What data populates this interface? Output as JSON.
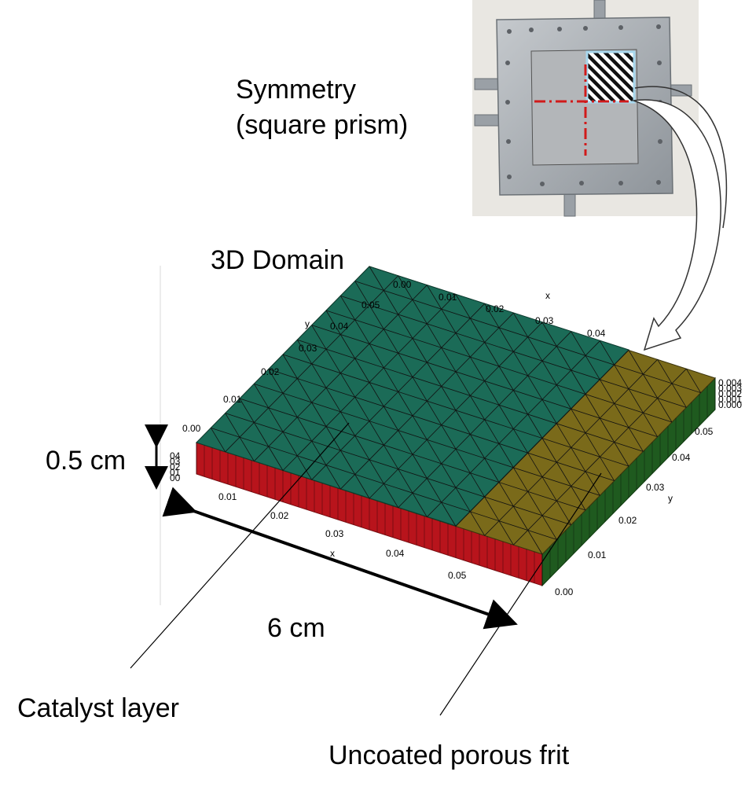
{
  "labels": {
    "symmetry_line1": "Symmetry",
    "symmetry_line2": "(square prism)",
    "domain": "3D Domain",
    "height": "0.5 cm",
    "width": "6 cm",
    "catalyst": "Catalyst layer",
    "frit": "Uncoated porous frit"
  },
  "axes": {
    "x_label": "x",
    "y_label": "y",
    "top_x_ticks": [
      "0.00",
      "0.01",
      "0.02",
      "0.03",
      "0.04"
    ],
    "top_y_ticks": [
      "0.05",
      "0.04",
      "0.03",
      "0.02",
      "0.01",
      "0.00"
    ],
    "bottom_x_ticks": [
      "0.01",
      "0.02",
      "0.03",
      "0.04",
      "0.05"
    ],
    "right_y_ticks": [
      "0.05",
      "0.04",
      "0.03",
      "0.02",
      "0.01",
      "0.00"
    ],
    "right_z_ticks": [
      "0.004",
      "0.003",
      "0.002",
      "0.001",
      "0.000"
    ],
    "left_z_ticks": [
      "04",
      "03",
      "02",
      "01",
      "00"
    ]
  },
  "colors": {
    "catalyst": "#1b6b57",
    "frit": "#7a6a1a",
    "side_front": "#b8141c",
    "side_right": "#1f5a1f",
    "symmetry_marker": "#d11a1a",
    "hatch_box": "#a8d8ee",
    "photo_frame": "#9ea4aa"
  }
}
